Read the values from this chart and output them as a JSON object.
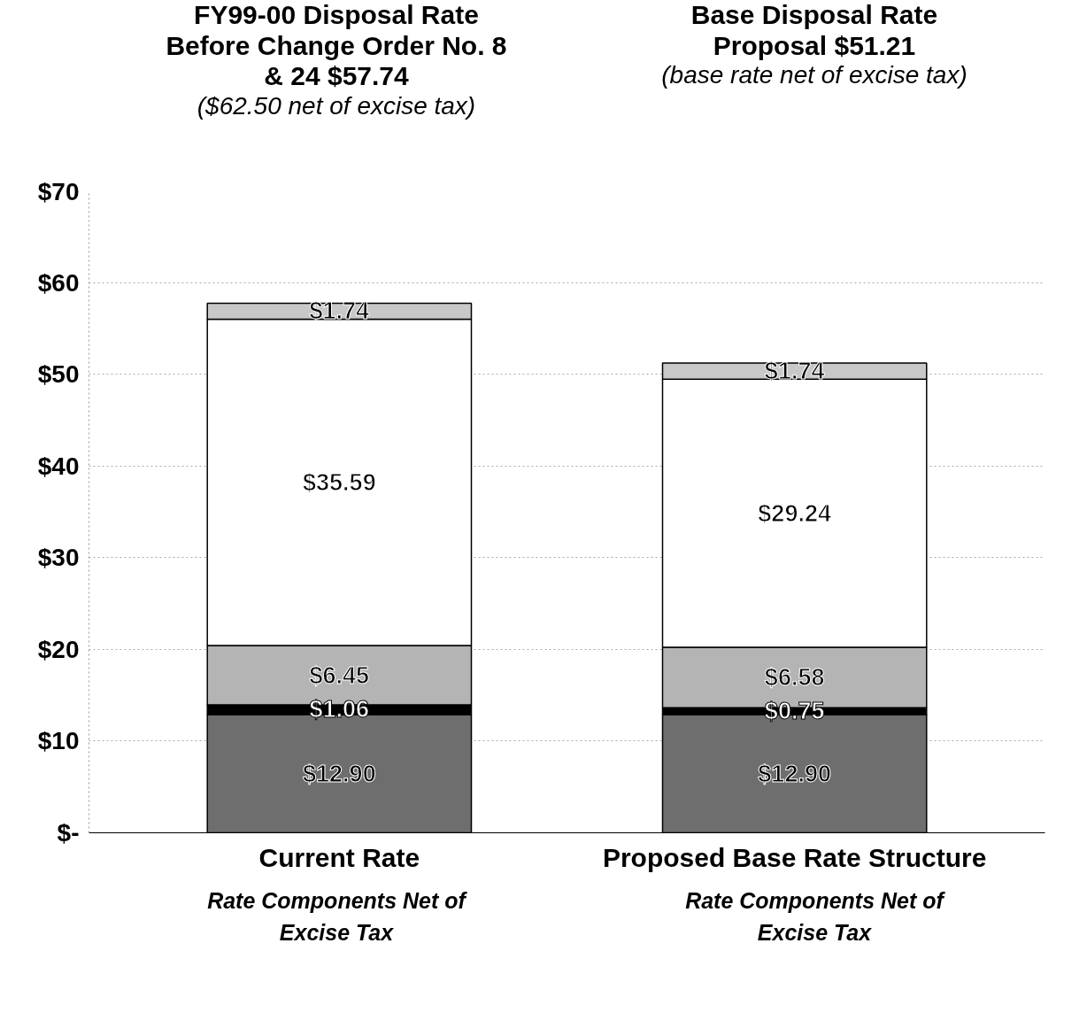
{
  "chart_data": {
    "type": "bar",
    "stacked": true,
    "categories": [
      "Current Rate",
      "Proposed Base Rate Structure"
    ],
    "series": [
      {
        "color": "#6e6e6e",
        "values": [
          12.9,
          12.9
        ],
        "value_labels": [
          "$12.90",
          "$12.90"
        ]
      },
      {
        "color": "#000000",
        "values": [
          1.06,
          0.75
        ],
        "value_labels": [
          "$1.06",
          "$0.75"
        ]
      },
      {
        "color": "#b4b4b4",
        "values": [
          6.45,
          6.58
        ],
        "value_labels": [
          "$6.45",
          "$6.58"
        ]
      },
      {
        "color": "#ffffff",
        "values": [
          35.59,
          29.24
        ],
        "value_labels": [
          "$35.59",
          "$29.24"
        ]
      },
      {
        "color": "#c8c8c8",
        "values": [
          1.74,
          1.74
        ],
        "value_labels": [
          "$1.74",
          "$1.74"
        ]
      }
    ],
    "ylim": [
      0,
      70
    ],
    "yticks": [
      {
        "value": 0,
        "label": "$-"
      },
      {
        "value": 10,
        "label": "$10"
      },
      {
        "value": 20,
        "label": "$20"
      },
      {
        "value": 30,
        "label": "$30"
      },
      {
        "value": 40,
        "label": "$40"
      },
      {
        "value": 50,
        "label": "$50"
      },
      {
        "value": 60,
        "label": "$60"
      },
      {
        "value": 70,
        "label": "$70"
      }
    ],
    "grid": "y",
    "annotations": [
      "FY99-00 Disposal Rate Before Change Order No. 8 & 24 $57.74",
      "($62.50 net of excise tax)",
      "Base Disposal Rate Proposal $51.21",
      "(base rate net of excise tax)",
      "Rate Components Net of Excise Tax",
      "Rate Components Net of Excise Tax"
    ]
  }
}
